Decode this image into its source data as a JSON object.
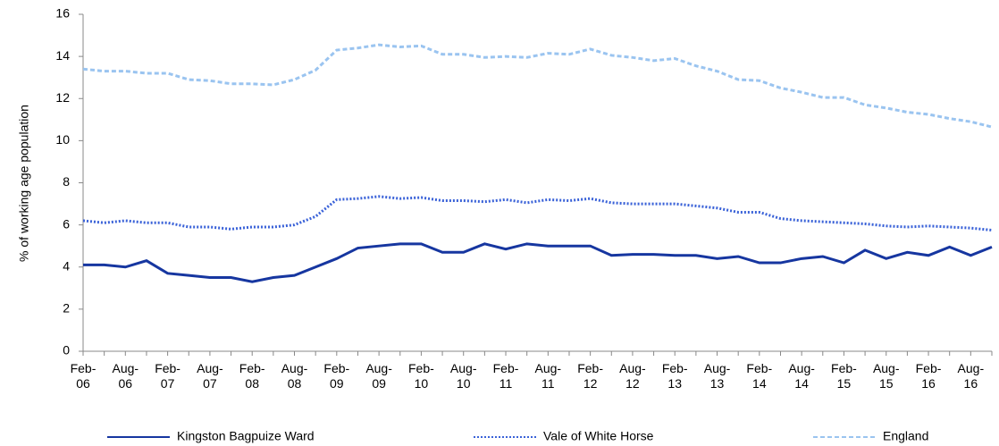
{
  "chart_data": {
    "type": "line",
    "y_label": "% of working age population",
    "categories": [
      "Feb-06",
      null,
      "Aug-06",
      null,
      "Feb-07",
      null,
      "Aug-07",
      null,
      "Feb-08",
      null,
      "Aug-08",
      null,
      "Feb-09",
      null,
      "Aug-09",
      null,
      "Feb-10",
      null,
      "Aug-10",
      null,
      "Feb-11",
      null,
      "Aug-11",
      null,
      "Feb-12",
      null,
      "Aug-12",
      null,
      "Feb-13",
      null,
      "Aug-13",
      null,
      "Feb-14",
      null,
      "Aug-14",
      null,
      "Feb-15",
      null,
      "Aug-15",
      null,
      "Feb-16",
      null,
      "Aug-16",
      null
    ],
    "series": [
      {
        "name": "Kingston Bagpuize Ward",
        "color": "#1636a0",
        "style": "solid",
        "values": [
          4.1,
          4.1,
          4.0,
          4.3,
          3.7,
          3.6,
          3.5,
          3.5,
          3.3,
          3.5,
          3.6,
          4.0,
          4.4,
          4.9,
          5.0,
          5.1,
          5.1,
          4.7,
          4.7,
          5.1,
          4.85,
          5.1,
          5.0,
          5.0,
          5.0,
          4.55,
          4.6,
          4.6,
          4.55,
          4.55,
          4.4,
          4.5,
          4.2,
          4.2,
          4.4,
          4.5,
          4.2,
          4.8,
          4.4,
          4.7,
          4.55,
          4.95,
          4.55,
          4.95
        ]
      },
      {
        "name": "Vale of White Horse",
        "color": "#3a62d8",
        "style": "dotted",
        "values": [
          6.2,
          6.1,
          6.2,
          6.1,
          6.1,
          5.9,
          5.9,
          5.8,
          5.9,
          5.9,
          6.0,
          6.4,
          7.2,
          7.25,
          7.35,
          7.25,
          7.3,
          7.15,
          7.15,
          7.1,
          7.2,
          7.05,
          7.2,
          7.15,
          7.25,
          7.05,
          7.0,
          7.0,
          7.0,
          6.9,
          6.8,
          6.6,
          6.6,
          6.3,
          6.2,
          6.15,
          6.1,
          6.05,
          5.95,
          5.9,
          5.95,
          5.9,
          5.85,
          5.75
        ]
      },
      {
        "name": "England",
        "color": "#9ac4f0",
        "style": "dashed",
        "values": [
          13.4,
          13.3,
          13.3,
          13.2,
          13.2,
          12.9,
          12.85,
          12.7,
          12.7,
          12.65,
          12.9,
          13.35,
          14.3,
          14.4,
          14.55,
          14.45,
          14.5,
          14.1,
          14.1,
          13.95,
          14.0,
          13.95,
          14.15,
          14.1,
          14.35,
          14.05,
          13.95,
          13.8,
          13.9,
          13.55,
          13.3,
          12.9,
          12.85,
          12.5,
          12.3,
          12.05,
          12.05,
          11.7,
          11.55,
          11.35,
          11.25,
          11.05,
          10.9,
          10.65
        ]
      }
    ],
    "ylim": [
      0,
      16
    ],
    "yticks": [
      0,
      2,
      4,
      6,
      8,
      10,
      12,
      14,
      16
    ],
    "grid": false,
    "legend": "bottom"
  }
}
